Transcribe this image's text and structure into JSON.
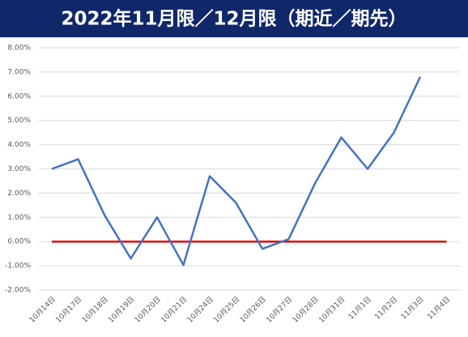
{
  "chart_data": {
    "type": "line",
    "title": "2022年11月限／12月限（期近／期先）",
    "categories": [
      "10月14日",
      "10月17日",
      "10月18日",
      "10月19日",
      "10月20日",
      "10月21日",
      "10月24日",
      "10月25日",
      "10月26日",
      "10月27日",
      "10月28日",
      "10月31日",
      "11月1日",
      "11月2日",
      "11月3日",
      "11月4日"
    ],
    "series": [
      {
        "color": "#4472c4",
        "values": [
          3.0,
          3.4,
          1.1,
          -0.7,
          1.0,
          -0.97,
          2.7,
          1.6,
          -0.3,
          0.1,
          2.4,
          4.3,
          3.0,
          4.5,
          6.8,
          null
        ]
      },
      {
        "color": "#e00000",
        "values": [
          0,
          0,
          0,
          0,
          0,
          0,
          0,
          0,
          0,
          0,
          0,
          0,
          0,
          0,
          0,
          0
        ]
      }
    ],
    "ylim": [
      -2,
      8
    ],
    "yticks": [
      {
        "value": -2,
        "label": "-2.00%"
      },
      {
        "value": -1,
        "label": "-1.00%"
      },
      {
        "value": 0,
        "label": "0.00%"
      },
      {
        "value": 1,
        "label": "1.00%"
      },
      {
        "value": 2,
        "label": "2.00%"
      },
      {
        "value": 3,
        "label": "3.00%"
      },
      {
        "value": 4,
        "label": "4.00%"
      },
      {
        "value": 5,
        "label": "5.00%"
      },
      {
        "value": 6,
        "label": "6.00%"
      },
      {
        "value": 7,
        "label": "7.00%"
      },
      {
        "value": 8,
        "label": "8.00%"
      }
    ],
    "grid": true
  }
}
